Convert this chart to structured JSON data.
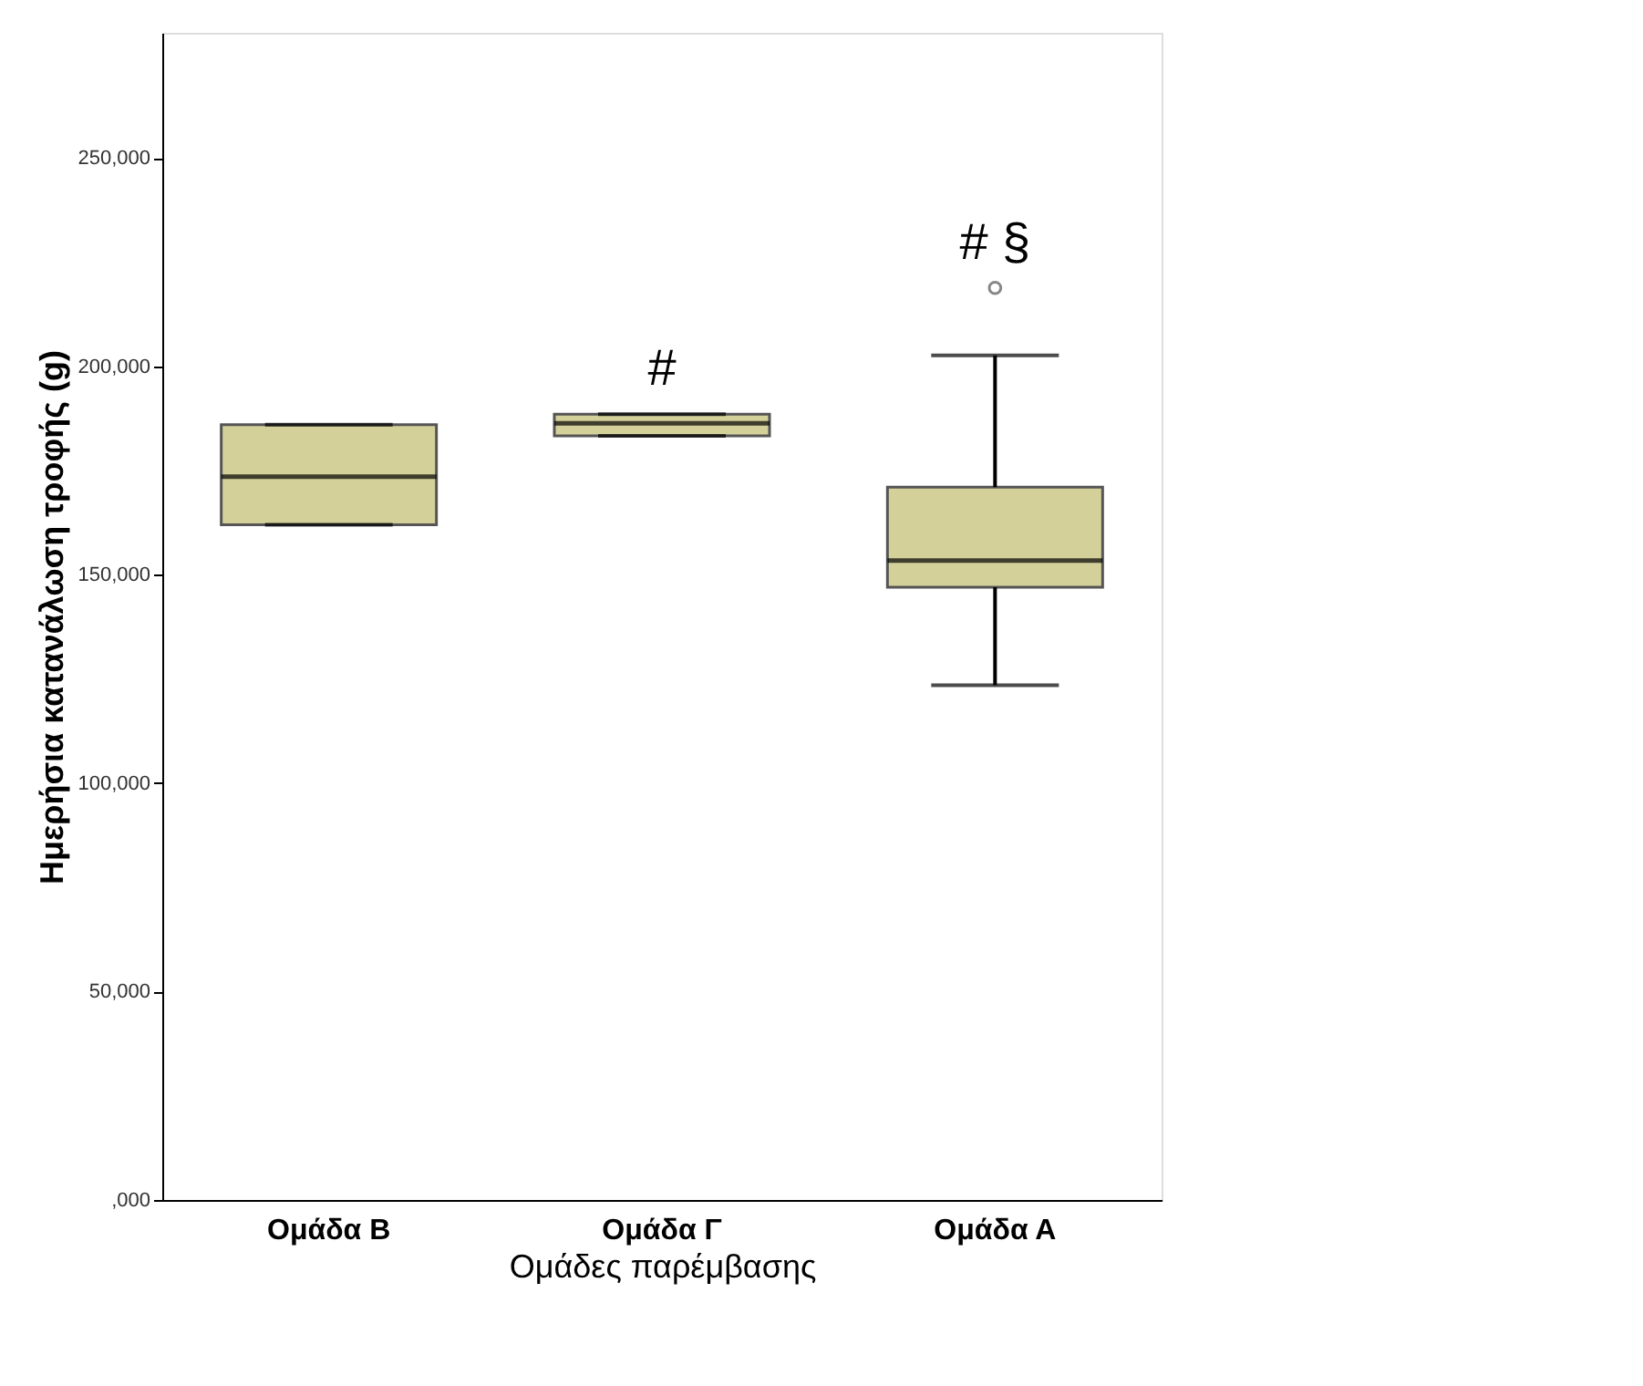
{
  "chart_data": {
    "type": "box",
    "xlabel": "Ομάδες παρέμβασης",
    "ylabel": "Ημερήσια κατανάλωση τροφής (g)",
    "categories": [
      "Ομάδα Β",
      "Ομάδα Γ",
      "Ομάδα Α"
    ],
    "series": [
      {
        "color": "#d4d09a",
        "boxes": [
          {
            "low": 162000,
            "q1": 162000,
            "median": 173500,
            "q3": 186000,
            "high": 186000
          },
          {
            "low": 183300,
            "q1": 183300,
            "median": 186300,
            "q3": 188500,
            "high": 188500
          },
          {
            "low": 123500,
            "q1": 147000,
            "median": 153400,
            "q3": 171000,
            "high": 202600,
            "outliers": [
              218800
            ]
          }
        ]
      }
    ],
    "ylim": [
      0,
      280000
    ],
    "yticks": [
      {
        "value": 0,
        "label": ",000"
      },
      {
        "value": 50000,
        "label": "50,000"
      },
      {
        "value": 100000,
        "label": "100,000"
      },
      {
        "value": 150000,
        "label": "150,000"
      },
      {
        "value": 200000,
        "label": "200,000"
      },
      {
        "value": 250000,
        "label": "250,000"
      }
    ],
    "annotations": [
      {
        "text": "#",
        "x": "Ομάδα Γ",
        "y": 188500
      },
      "# §"
    ],
    "grid": false
  }
}
